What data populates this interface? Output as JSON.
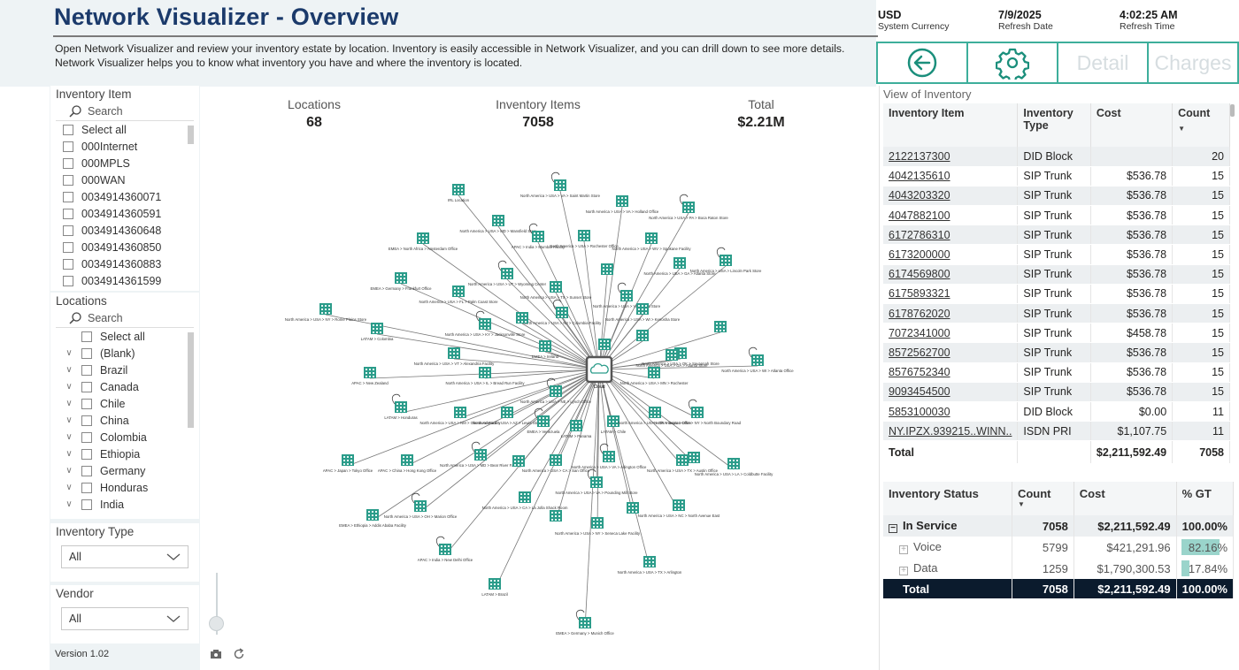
{
  "header": {
    "title": "Network Visualizer - Overview",
    "description": "Open Network Visualizer and review your inventory estate by location. Inventory is easily accessible in Network Visualizer, and you can drill down to see more details. Network Visualizer helps you to know what inventory you have and where the inventory is located."
  },
  "meta": {
    "currency_value": "USD",
    "currency_label": "System Currency",
    "date_value": "7/9/2025",
    "date_label": "Refresh Date",
    "time_value": "4:02:25 AM",
    "time_label": "Refresh Time"
  },
  "buttons": {
    "detail": "Detail",
    "charges": "Charges",
    "back_icon": "back-arrow-icon",
    "settings_icon": "gear-icon"
  },
  "slicers": {
    "inventory_item": {
      "title": "Inventory Item",
      "search_placeholder": "Search",
      "items": [
        "Select all",
        "000Internet",
        "000MPLS",
        "000WAN",
        "0034914360071",
        "0034914360591",
        "0034914360648",
        "0034914360850",
        "0034914360883",
        "0034914361599"
      ]
    },
    "locations": {
      "title": "Locations",
      "search_placeholder": "Search",
      "items": [
        "Select all",
        "(Blank)",
        "Brazil",
        "Canada",
        "Chile",
        "China",
        "Colombia",
        "Ethiopia",
        "Germany",
        "Honduras",
        "India"
      ]
    },
    "inventory_type": {
      "title": "Inventory Type",
      "value": "All"
    },
    "vendor": {
      "title": "Vendor",
      "value": "All"
    }
  },
  "kpis": {
    "locations_label": "Locations",
    "locations_value": "68",
    "items_label": "Inventory Items",
    "items_value": "7058",
    "total_label": "Total",
    "total_value": "$2.21M"
  },
  "graph": {
    "center_label": "Cloud",
    "nodes": [
      "North America > USA > VA > Saint Martin Store",
      "IRL Location",
      "North America > USA > VA > Holland Office",
      "North America > USA > PA > Boca Raton Store",
      "EMEA > North Africa > Amsterdam Office",
      "North America > USA > MD > Mansfield Store",
      "APAC > India > Mumbai Facility",
      "North America > USA > Rochester Office",
      "North America > USA > WV > Spokane Facility",
      "North America > USA > Lincoln Park Store",
      "EMEA > Germany > Frankfurt Office",
      "North America > USA > FL > Palm Coast Store",
      "North America > USA > UT > Wyoming Center",
      "North America > USA > TX > Sunset Store",
      "North America > USA > GA > Atlanta Store",
      "North America > USA > VA > Iowa Store",
      "North America > USA > NY > Rome Plains Store",
      "LATAM > Colombia",
      "North America > USA > NJ > Columbia Facility",
      "North America > USA > WI > Kenosha Store",
      "EMEA > Ireland",
      "North America > USA > KY > Jacksonville Store",
      "North America > USA > VT > Alexandria Facility",
      "North America > USA > OK > Savannah Store",
      "North America > USA > WI > Atlanta Office",
      "APAC > New Zealand",
      "North America > USA > IL > Bread Run Facility",
      "North America > USA > NE > Lynch Office",
      "North America > USA > MN > Rochester",
      "North America > USA > GA > Atlanta Store",
      "LATAM > Honduras",
      "North America > USA > NM > Glenwood Facility",
      "North America > USA > AZ > Lewis Store",
      "EMEA > Venezuela",
      "LATAM > Chile",
      "North America > USA > OR > Dayton Office",
      "North America > USA > NY > North Boundary Road",
      "APAC > Japan > Tokyo Office",
      "APAC > China > Hong Kong Office",
      "North America > USA > MD > Bear River Facility",
      "North America > USA > CA > San Office",
      "LATAM > Panama",
      "North America > USA > VA > Arlington Office",
      "North America > USA > TX > Austin Office",
      "North America > USA > LA > Coldbutte Facility",
      "North America > USA > VA > Pounding Mill Store",
      "North America > USA > CA > La Jolla Shack Room",
      "EMEA > Ethiopia > Addis Ababa Facility",
      "North America > USA > OH > Marion Office",
      "North America > USA > NY > Seneca Lake Facility",
      "North America > USA > NC > North Avenue East",
      "APAC > India > New Delhi Office",
      "North America > USA > TX > Arlington",
      "LATAM > Brazil",
      "EMEA > Germany > Munich Office"
    ]
  },
  "inventory_table": {
    "title": "View of Inventory",
    "headers": [
      "Inventory Item",
      "Inventory Type",
      "Cost",
      "Count"
    ],
    "rows": [
      [
        "2122137300",
        "DID Block",
        "",
        "20"
      ],
      [
        "4042135610",
        "SIP Trunk",
        "$536.78",
        "15"
      ],
      [
        "4043203320",
        "SIP Trunk",
        "$536.78",
        "15"
      ],
      [
        "4047882100",
        "SIP Trunk",
        "$536.78",
        "15"
      ],
      [
        "6172786310",
        "SIP Trunk",
        "$536.78",
        "15"
      ],
      [
        "6173200000",
        "SIP Trunk",
        "$536.78",
        "15"
      ],
      [
        "6174569800",
        "SIP Trunk",
        "$536.78",
        "15"
      ],
      [
        "6175893321",
        "SIP Trunk",
        "$536.78",
        "15"
      ],
      [
        "6178762020",
        "SIP Trunk",
        "$536.78",
        "15"
      ],
      [
        "7072341000",
        "SIP Trunk",
        "$458.78",
        "15"
      ],
      [
        "8572562700",
        "SIP Trunk",
        "$536.78",
        "15"
      ],
      [
        "8576752340",
        "SIP Trunk",
        "$536.78",
        "15"
      ],
      [
        "9093454500",
        "SIP Trunk",
        "$536.78",
        "15"
      ],
      [
        "5853100030",
        "DID Block",
        "$0.00",
        "11"
      ],
      [
        "NY.IPZX.939215..WINN..",
        "ISDN PRI",
        "$1,107.75",
        "11"
      ]
    ],
    "total_label": "Total",
    "total_cost": "$2,211,592.49",
    "total_count": "7058"
  },
  "status_table": {
    "headers": [
      "Inventory Status",
      "Count",
      "Cost",
      "% GT"
    ],
    "rows": [
      {
        "label": "In Service",
        "count": "7058",
        "cost": "$2,211,592.49",
        "gt": "100.00%",
        "gt_value": 100
      },
      {
        "label": "Voice",
        "count": "5799",
        "cost": "$421,291.96",
        "gt": "82.16%",
        "gt_value": 82.16
      },
      {
        "label": "Data",
        "count": "1259",
        "cost": "$1,790,300.53",
        "gt": "17.84%",
        "gt_value": 17.84
      }
    ],
    "total": {
      "label": "Total",
      "count": "7058",
      "cost": "$2,211,592.49",
      "gt": "100.00%"
    }
  },
  "footer": {
    "version": "Version 1.02"
  },
  "colors": {
    "accent": "#3dae9b",
    "title": "#1b3a6b",
    "header_bg": "#eef3f5",
    "total_bg": "#0b1b2d",
    "gt_bar": "#9ad4cb"
  }
}
